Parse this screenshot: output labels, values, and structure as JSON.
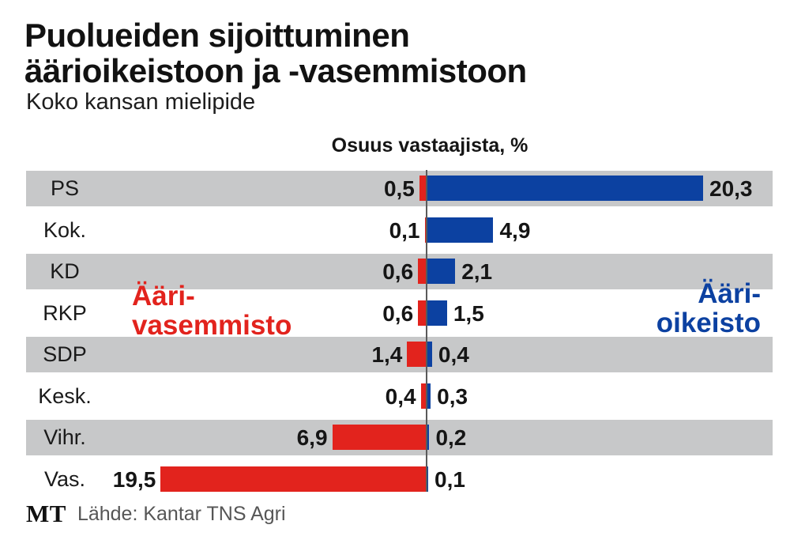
{
  "header": {
    "title_line1": "Puolueiden sijoittuminen",
    "title_line2": "äärioikeistoon ja -vasemmistoon",
    "subtitle": "Koko kansan mielipide",
    "axis_title": "Osuus vastaajista, %"
  },
  "chart_data": {
    "type": "bar",
    "orientation": "horizontal-diverging",
    "title": "Puolueiden sijoittuminen äärioikeistoon ja -vasemmistoon",
    "subtitle": "Koko kansan mielipide",
    "xlabel": "Osuus vastaajista, %",
    "unit": "%",
    "axis_max": 20.3,
    "categories": [
      "PS",
      "Kok.",
      "KD",
      "RKP",
      "SDP",
      "Kesk.",
      "Vihr.",
      "Vas."
    ],
    "series": [
      {
        "name": "Ääri-vasemmisto",
        "side": "left",
        "color": "#e2231d",
        "values": [
          0.5,
          0.1,
          0.6,
          0.6,
          1.4,
          0.4,
          6.9,
          19.5
        ],
        "labels": [
          "0,5",
          "0,1",
          "0,6",
          "0,6",
          "1,4",
          "0,4",
          "6,9",
          "19,5"
        ]
      },
      {
        "name": "Ääri-oikeisto",
        "side": "right",
        "color": "#0c41a1",
        "values": [
          20.3,
          4.9,
          2.1,
          1.5,
          0.4,
          0.3,
          0.2,
          0.1
        ],
        "labels": [
          "20,3",
          "4,9",
          "2,1",
          "1,5",
          "0,4",
          "0,3",
          "0,2",
          "0,1"
        ]
      }
    ],
    "annotations": {
      "left_label_line1": "Ääri-",
      "left_label_line2": "vasemmisto",
      "left_label_color": "#e2231d",
      "right_label_line1": "Ääri-",
      "right_label_line2": "oikeisto",
      "right_label_color": "#0c41a1"
    },
    "row_stripe_color": "#c7c8c9",
    "grid": "off",
    "legend_position": "in-plot-annotations"
  },
  "footer": {
    "logo": "MT",
    "source": "Lähde: Kantar TNS Agri"
  }
}
